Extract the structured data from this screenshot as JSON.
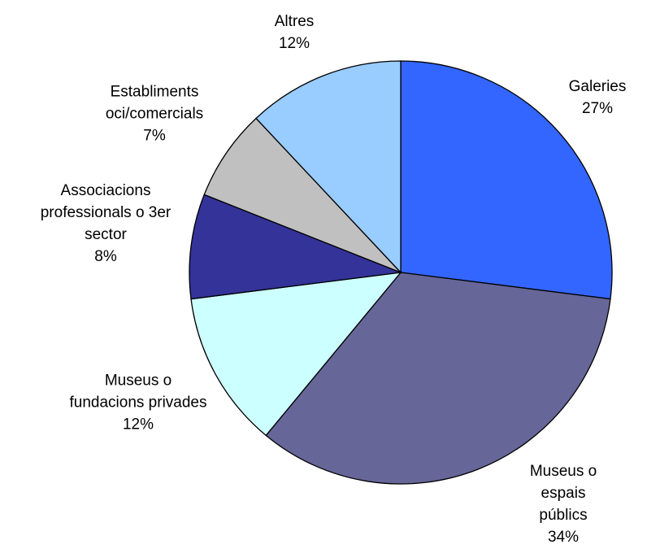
{
  "chart_data": {
    "type": "pie",
    "categories": [
      "Galeries",
      "Museus o espais\npúblics",
      "Museus o\nfundacions privades",
      "Associacions\nprofessionals o 3er\nsector",
      "Establiments\noci/comercials",
      "Altres"
    ],
    "values": [
      27,
      34,
      12,
      8,
      7,
      12
    ],
    "value_labels": [
      "27%",
      "34%",
      "12%",
      "8%",
      "7%",
      "12%"
    ],
    "colors": [
      "#3366ff",
      "#666699",
      "#ccffff",
      "#333399",
      "#c0c0c0",
      "#99ccff"
    ]
  }
}
